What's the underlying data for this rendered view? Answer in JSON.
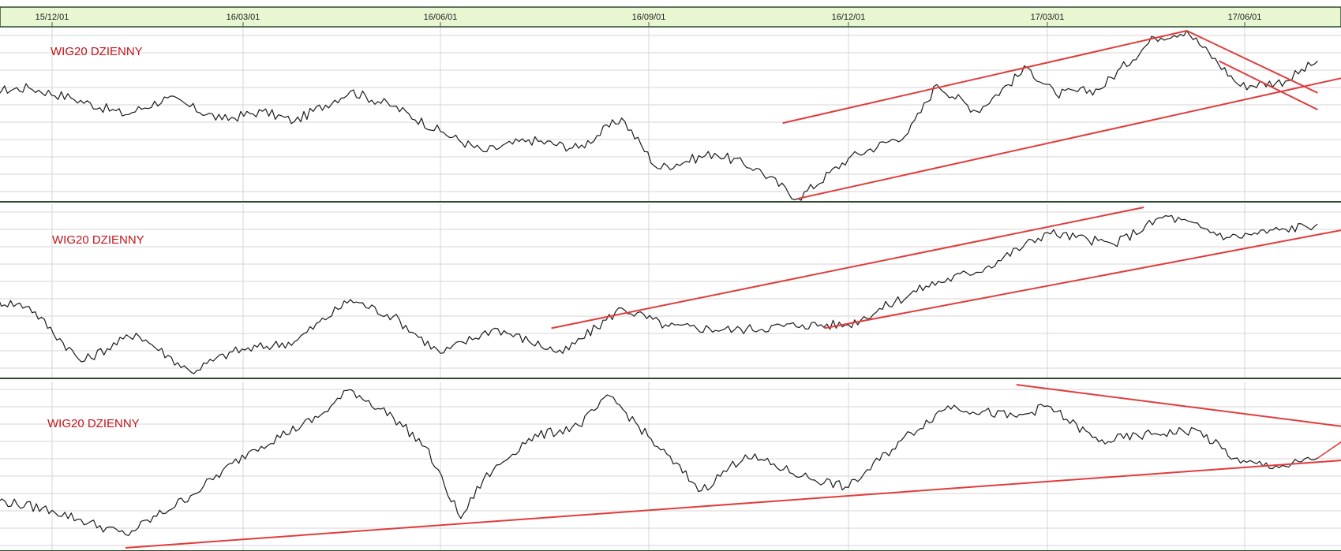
{
  "theme": {
    "axis_bar_bg": "#e8f7d2",
    "panel_border": "#2d4a2f",
    "grid_color": "#d6d6d6",
    "price_color": "#1a1a1a",
    "trend_color": "#e03c3c",
    "title_color": "#c0141b"
  },
  "date_axis": {
    "ticks": [
      "15/12/01",
      "16/03/01",
      "16/06/01",
      "16/09/01",
      "16/12/01",
      "17/03/01",
      "17/06/01"
    ]
  },
  "chart_data": [
    {
      "type": "line",
      "title": "WIG20 DZIENNY",
      "timeframe": "2015-10 to 2017-07, daily",
      "y_scale": "relative",
      "ylim": [
        0,
        100
      ],
      "grid": true,
      "series": [
        {
          "points": [
            [
              "2015-11-01",
              64
            ],
            [
              "2015-11-20",
              66
            ],
            [
              "2015-12-10",
              60
            ],
            [
              "2016-01-05",
              50
            ],
            [
              "2016-01-25",
              60
            ],
            [
              "2016-02-20",
              47
            ],
            [
              "2016-03-10",
              52
            ],
            [
              "2016-03-25",
              46
            ],
            [
              "2016-04-20",
              64
            ],
            [
              "2016-05-10",
              55
            ],
            [
              "2016-06-01",
              40
            ],
            [
              "2016-06-20",
              28
            ],
            [
              "2016-07-10",
              35
            ],
            [
              "2016-08-01",
              30
            ],
            [
              "2016-08-20",
              48
            ],
            [
              "2016-09-05",
              18
            ],
            [
              "2016-10-01",
              27
            ],
            [
              "2016-10-20",
              18
            ],
            [
              "2016-11-08",
              0
            ],
            [
              "2016-12-01",
              24
            ],
            [
              "2016-12-28",
              39
            ],
            [
              "2017-01-10",
              68
            ],
            [
              "2017-01-28",
              52
            ],
            [
              "2017-02-20",
              78
            ],
            [
              "2017-03-05",
              62
            ],
            [
              "2017-03-25",
              65
            ],
            [
              "2017-04-20",
              96
            ],
            [
              "2017-05-05",
              100
            ],
            [
              "2017-05-30",
              67
            ],
            [
              "2017-06-20",
              70
            ],
            [
              "2017-07-05",
              82
            ]
          ]
        }
      ],
      "trendlines": [
        {
          "from": [
            "2016-11-08",
            0
          ],
          "to": [
            "2017-07-31",
            76
          ]
        },
        {
          "from": [
            "2016-11-01",
            45
          ],
          "to": [
            "2017-05-05",
            100
          ]
        },
        {
          "from": [
            "2017-05-05",
            100
          ],
          "to": [
            "2017-07-05",
            63
          ]
        },
        {
          "from": [
            "2017-05-20",
            82
          ],
          "to": [
            "2017-07-05",
            53
          ]
        }
      ]
    },
    {
      "type": "line",
      "title": "WIG20 DZIENNY",
      "timeframe": "2015-10 to 2017-07, daily",
      "y_scale": "relative",
      "ylim": [
        0,
        100
      ],
      "grid": true,
      "series": [
        {
          "points": [
            [
              "2015-11-01",
              45
            ],
            [
              "2015-11-20",
              41
            ],
            [
              "2015-12-15",
              8
            ],
            [
              "2016-01-10",
              25
            ],
            [
              "2016-02-05",
              2
            ],
            [
              "2016-02-25",
              14
            ],
            [
              "2016-03-25",
              20
            ],
            [
              "2016-04-20",
              45
            ],
            [
              "2016-05-10",
              35
            ],
            [
              "2016-06-01",
              13
            ],
            [
              "2016-06-25",
              28
            ],
            [
              "2016-07-25",
              13
            ],
            [
              "2016-08-20",
              40
            ],
            [
              "2016-09-10",
              29
            ],
            [
              "2016-10-10",
              27
            ],
            [
              "2016-11-10",
              30
            ],
            [
              "2016-12-01",
              30
            ],
            [
              "2017-01-05",
              53
            ],
            [
              "2017-02-01",
              64
            ],
            [
              "2017-03-01",
              85
            ],
            [
              "2017-04-01",
              78
            ],
            [
              "2017-04-25",
              95
            ],
            [
              "2017-05-25",
              82
            ],
            [
              "2017-06-20",
              87
            ],
            [
              "2017-07-05",
              90
            ]
          ]
        }
      ],
      "trendlines": [
        {
          "from": [
            "2016-07-20",
            28
          ],
          "to": [
            "2017-04-15",
            100
          ]
        },
        {
          "from": [
            "2016-11-20",
            28
          ],
          "to": [
            "2017-07-31",
            90
          ]
        }
      ]
    },
    {
      "type": "line",
      "title": "WIG20 DZIENNY",
      "timeframe": "2015-10 to 2017-07, daily",
      "y_scale": "relative",
      "ylim": [
        0,
        100
      ],
      "grid": true,
      "series": [
        {
          "points": [
            [
              "2015-11-01",
              30
            ],
            [
              "2015-12-01",
              23
            ],
            [
              "2016-01-05",
              8
            ],
            [
              "2016-02-05",
              32
            ],
            [
              "2016-03-05",
              60
            ],
            [
              "2016-04-05",
              80
            ],
            [
              "2016-04-20",
              97
            ],
            [
              "2016-05-10",
              80
            ],
            [
              "2016-05-25",
              62
            ],
            [
              "2016-06-10",
              18
            ],
            [
              "2016-06-20",
              42
            ],
            [
              "2016-07-10",
              67
            ],
            [
              "2016-08-01",
              75
            ],
            [
              "2016-08-15",
              93
            ],
            [
              "2016-09-05",
              62
            ],
            [
              "2016-09-25",
              35
            ],
            [
              "2016-10-15",
              57
            ],
            [
              "2016-11-10",
              44
            ],
            [
              "2016-12-01",
              37
            ],
            [
              "2016-12-25",
              66
            ],
            [
              "2017-01-15",
              87
            ],
            [
              "2017-02-15",
              80
            ],
            [
              "2017-03-01",
              87
            ],
            [
              "2017-03-25",
              65
            ],
            [
              "2017-04-20",
              70
            ],
            [
              "2017-05-10",
              72
            ],
            [
              "2017-05-30",
              52
            ],
            [
              "2017-06-20",
              50
            ],
            [
              "2017-07-05",
              55
            ]
          ]
        }
      ],
      "trendlines": [
        {
          "from": [
            "2016-01-05",
            0
          ],
          "to": [
            "2017-07-31",
            55
          ]
        },
        {
          "from": [
            "2017-02-15",
            100
          ],
          "to": [
            "2017-07-31",
            72
          ]
        }
      ],
      "annotations": [
        {
          "type": "arrow",
          "from": [
            "2017-07-05",
            55
          ],
          "to": [
            "2017-07-25",
            73
          ]
        }
      ]
    }
  ]
}
